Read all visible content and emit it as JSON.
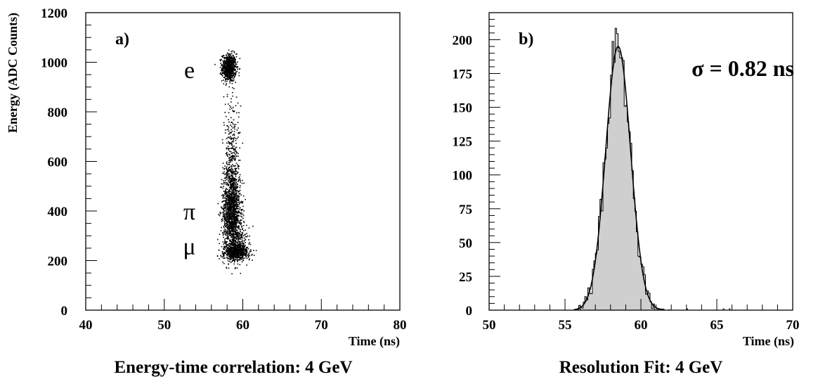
{
  "chart_data": [
    {
      "type": "scatter",
      "panel_label": "a)",
      "caption": "Energy-time correlation: 4 GeV",
      "xlabel": "Time (ns)",
      "ylabel": "Energy (ADC Counts)",
      "xlim": [
        40,
        80
      ],
      "ylim": [
        0,
        1200
      ],
      "x_ticks": [
        40,
        50,
        60,
        70,
        80
      ],
      "y_ticks": [
        0,
        200,
        400,
        600,
        800,
        1000,
        1200
      ],
      "grid": false,
      "annotations": [
        {
          "text": "e",
          "x": 53.2,
          "y": 970
        },
        {
          "text": "π",
          "x": 53.2,
          "y": 400
        },
        {
          "text": "μ",
          "x": 53.2,
          "y": 260
        }
      ],
      "clusters": [
        {
          "name": "e",
          "x_center": 58.2,
          "x_sigma": 0.45,
          "y_center": 980,
          "y_sigma": 28,
          "points": 700
        },
        {
          "name": "π",
          "x_center": 58.5,
          "x_sigma": 0.55,
          "y_center": 410,
          "y_sigma": 90,
          "points": 1400
        },
        {
          "name": "μ",
          "x_center": 59.2,
          "x_sigma": 0.75,
          "y_center": 235,
          "y_sigma": 15,
          "points": 900
        },
        {
          "name": "tail",
          "x_center": 58.6,
          "x_sigma": 0.5,
          "y_center": 650,
          "y_sigma": 110,
          "points": 250
        }
      ]
    },
    {
      "type": "histogram",
      "panel_label": "b)",
      "caption": "Resolution Fit: 4 GeV",
      "xlabel": "Time (ns)",
      "ylabel": "",
      "xlim": [
        50,
        70
      ],
      "ylim": [
        0,
        220
      ],
      "x_ticks": [
        50,
        55,
        60,
        65,
        70
      ],
      "y_ticks": [
        0,
        25,
        50,
        75,
        100,
        125,
        150,
        175,
        200
      ],
      "grid": false,
      "annotation": "σ = 0.82 ns",
      "fit": {
        "function": "gaussian",
        "mean": 58.5,
        "sigma": 0.82,
        "amplitude": 195
      },
      "bin_width": 0.1,
      "range": [
        55.5,
        62.0
      ],
      "fill_color": "#cfcfcf"
    }
  ]
}
